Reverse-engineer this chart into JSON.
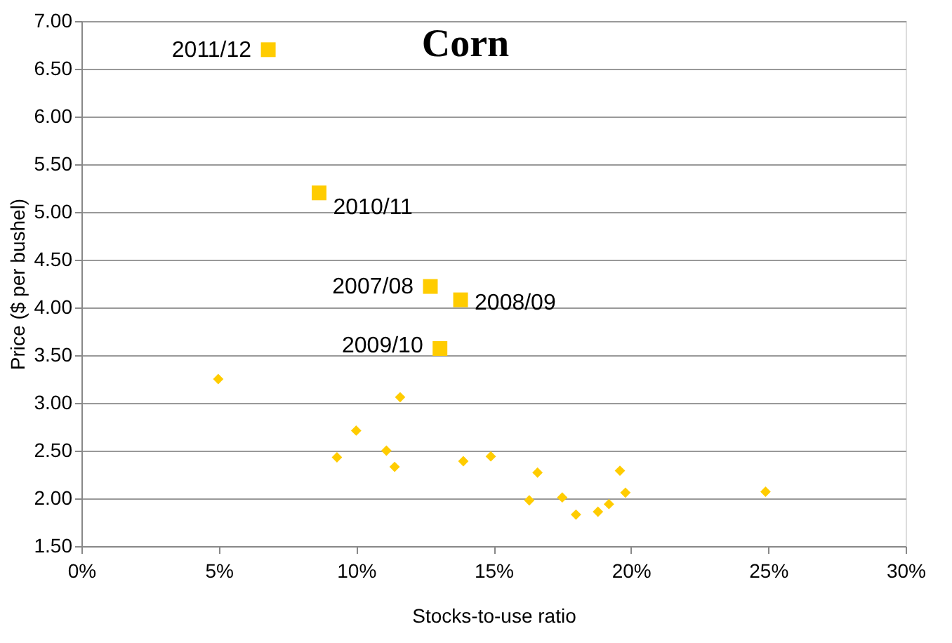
{
  "chart_data": {
    "type": "scatter",
    "title": "Corn",
    "xlabel": "Stocks-to-use ratio",
    "ylabel": "Price ($ per bushel)",
    "series": [
      {
        "color": "#ffcc00",
        "marker": "square",
        "x": [
          6.8,
          8.65,
          12.7,
          13.8,
          13.05
        ],
        "values": [
          6.7,
          5.2,
          4.22,
          4.08,
          3.57
        ]
      },
      {
        "color": "#ffcc00",
        "marker": "diamond",
        "x": [
          4.98,
          9.3,
          10.0,
          11.1,
          11.4,
          11.6,
          13.9,
          14.9,
          16.3,
          16.6,
          17.5,
          18.0,
          18.8,
          19.2,
          19.6,
          19.8,
          24.9
        ],
        "values": [
          3.25,
          2.43,
          2.71,
          2.5,
          2.33,
          3.06,
          2.39,
          2.44,
          1.98,
          2.27,
          2.01,
          1.83,
          1.86,
          1.94,
          2.29,
          2.06,
          2.07
        ]
      }
    ],
    "annotations": [
      {
        "text": "2011/12",
        "x": 6.8,
        "y": 6.7
      },
      {
        "text": "2010/11",
        "x": 8.65,
        "y": 5.2
      },
      {
        "text": "2007/08",
        "x": 12.7,
        "y": 4.22
      },
      {
        "text": "2008/09",
        "x": 13.8,
        "y": 4.08
      },
      {
        "text": "2009/10",
        "x": 13.05,
        "y": 3.57
      }
    ],
    "xlim": [
      0,
      30
    ],
    "xticks": [
      {
        "value": 0,
        "label": "0%"
      },
      {
        "value": 5,
        "label": "5%"
      },
      {
        "value": 10,
        "label": "10%"
      },
      {
        "value": 15,
        "label": "15%"
      },
      {
        "value": 20,
        "label": "20%"
      },
      {
        "value": 25,
        "label": "25%"
      },
      {
        "value": 30,
        "label": "30%"
      }
    ],
    "ylim": [
      1.5,
      7
    ],
    "yticks": [
      {
        "value": 1.5,
        "label": "1.50"
      },
      {
        "value": 2,
        "label": "2.00"
      },
      {
        "value": 2.5,
        "label": "2.50"
      },
      {
        "value": 3,
        "label": "3.00"
      },
      {
        "value": 3.5,
        "label": "3.50"
      },
      {
        "value": 4,
        "label": "4.00"
      },
      {
        "value": 4.5,
        "label": "4.50"
      },
      {
        "value": 5,
        "label": "5.00"
      },
      {
        "value": 5.5,
        "label": "5.50"
      },
      {
        "value": 6,
        "label": "6.00"
      },
      {
        "value": 6.5,
        "label": "6.50"
      },
      {
        "value": 7,
        "label": "7.00"
      }
    ],
    "grid": "y"
  }
}
